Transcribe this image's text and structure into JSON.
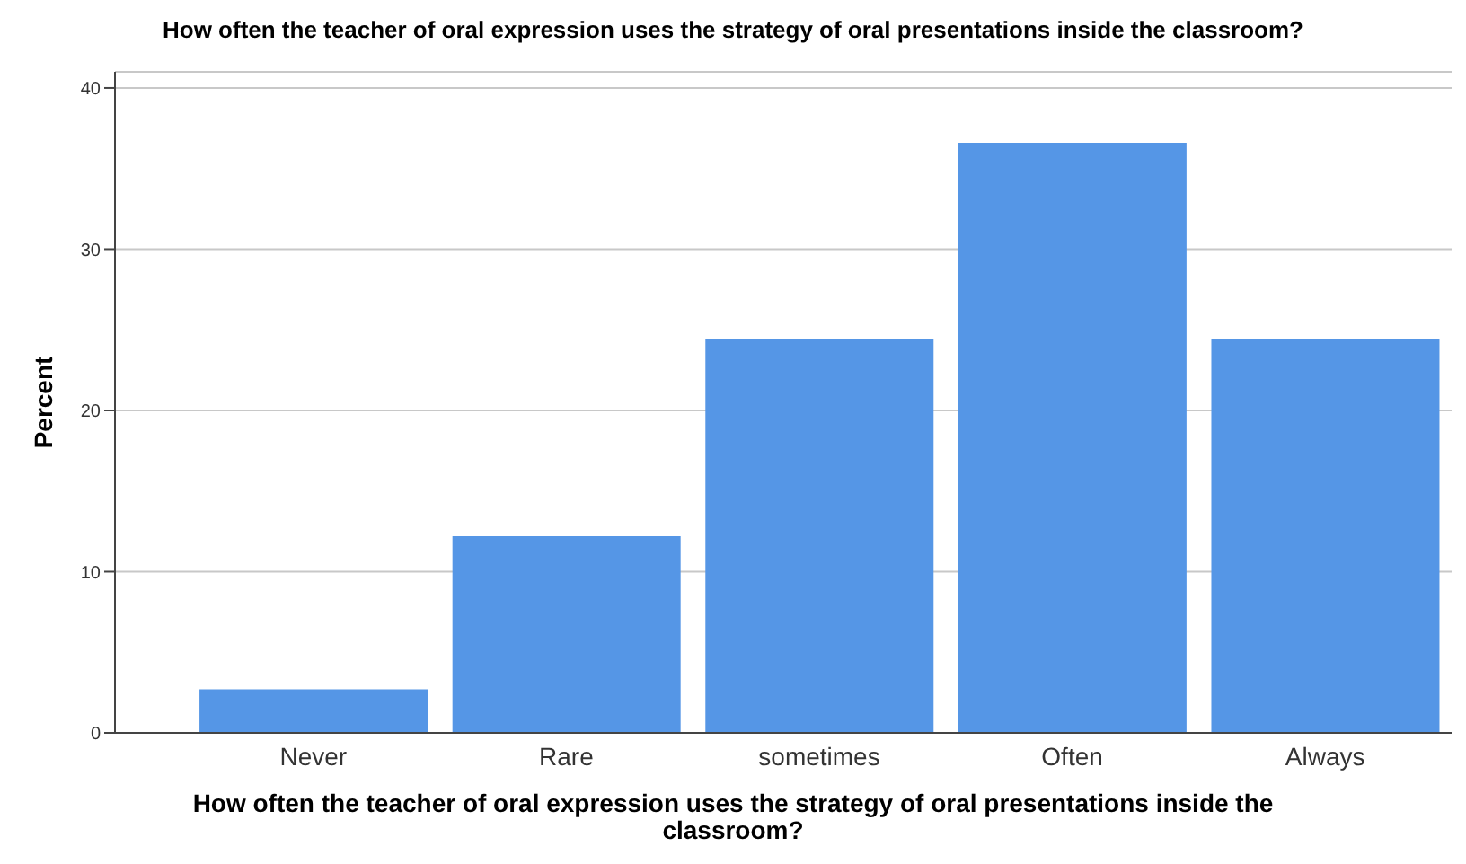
{
  "chart_data": {
    "type": "bar",
    "title": "How often the teacher of oral expression uses the strategy of oral presentations inside the classroom?",
    "xlabel": "How often the teacher of oral expression uses the strategy of oral presentations inside the classroom?",
    "ylabel": "Percent",
    "categories": [
      "Never",
      "Rare",
      "sometimes",
      "Often",
      "Always"
    ],
    "values": [
      2.7,
      12.2,
      24.4,
      36.6,
      24.4
    ],
    "color": "#5596e6",
    "ylim": [
      0,
      41
    ],
    "yticks": [
      0,
      10,
      20,
      30,
      40
    ],
    "grid": "y"
  }
}
